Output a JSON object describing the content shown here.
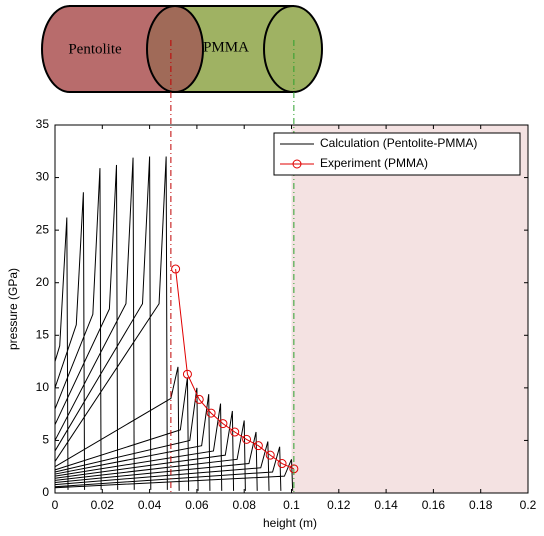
{
  "diagram": {
    "labels": [
      "Pentolite",
      "PMMA"
    ]
  },
  "chart_data": {
    "type": "line",
    "xlabel": "height (m)",
    "ylabel": "pressure (GPa)",
    "xlim": [
      0,
      0.2
    ],
    "ylim": [
      0,
      35
    ],
    "xticks": [
      0,
      0.02,
      0.04,
      0.06,
      0.08,
      0.1,
      0.12,
      0.14,
      0.16,
      0.18,
      0.2
    ],
    "yticks": [
      0,
      5,
      10,
      15,
      20,
      25,
      30,
      35
    ],
    "legend": "upper right",
    "shaded_region": [
      0.1,
      0.2
    ],
    "shaded_color": "#f4e2e2",
    "interface_lines": [
      {
        "x": 0.049,
        "color": "#c00000"
      },
      {
        "x": 0.101,
        "color": "#2ca02c"
      }
    ],
    "series": [
      {
        "name": "Calculation (Pentolite-PMMA)",
        "color": "#000000",
        "x": [
          0,
          0.002,
          0.005,
          0.0055,
          null,
          0,
          0.009,
          0.012,
          0.0125,
          null,
          0,
          0.016,
          0.019,
          0.0195,
          null,
          0,
          0.023,
          0.026,
          0.0265,
          null,
          0,
          0.03,
          0.033,
          0.0335,
          null,
          0,
          0.037,
          0.04,
          0.0405,
          null,
          0,
          0.044,
          0.047,
          0.0475,
          null,
          0,
          0.049,
          0.052,
          0.0525,
          null,
          0,
          0.053,
          0.056,
          0.0565,
          null,
          0,
          0.057,
          0.06,
          0.0605,
          null,
          0,
          0.062,
          0.065,
          0.0655,
          null,
          0,
          0.067,
          0.07,
          0.0705,
          null,
          0,
          0.072,
          0.075,
          0.0755,
          null,
          0,
          0.077,
          0.08,
          0.0805,
          null,
          0,
          0.082,
          0.085,
          0.0855,
          null,
          0,
          0.087,
          0.09,
          0.0905,
          null,
          0,
          0.092,
          0.095,
          0.0955,
          null,
          0,
          0.097,
          0.1,
          0.1005
        ],
        "values": [
          12.5,
          14,
          26.2,
          0.3,
          null,
          10,
          16,
          28.6,
          0.3,
          null,
          8,
          17,
          30.9,
          0.3,
          null,
          6.5,
          17.5,
          31.2,
          0.3,
          null,
          5,
          18,
          31.9,
          0.3,
          null,
          4,
          18,
          32,
          0.3,
          null,
          3,
          18,
          32,
          0.3,
          null,
          2.5,
          9,
          12,
          0.2,
          null,
          2.2,
          6,
          11,
          0.2,
          null,
          2,
          5,
          10,
          0.2,
          null,
          1.8,
          4.5,
          9.4,
          0.2,
          null,
          1.6,
          4,
          8.5,
          0.2,
          null,
          1.4,
          3.6,
          7.8,
          0.2,
          null,
          1.2,
          3.2,
          6.9,
          0.2,
          null,
          1,
          2.8,
          5.8,
          0.2,
          null,
          0.8,
          2.4,
          4.9,
          0.2,
          null,
          0.6,
          2,
          4.4,
          0.2,
          null,
          0.5,
          1.6,
          3.2,
          0.2
        ]
      },
      {
        "name": "Experiment (PMMA)",
        "color": "#e00000",
        "marker": "circle",
        "x": [
          0.051,
          0.056,
          0.061,
          0.066,
          0.071,
          0.076,
          0.081,
          0.086,
          0.091,
          0.096,
          0.101
        ],
        "values": [
          21.3,
          11.3,
          8.9,
          7.6,
          6.6,
          5.8,
          5.1,
          4.5,
          3.6,
          2.8,
          2.3
        ]
      }
    ]
  }
}
